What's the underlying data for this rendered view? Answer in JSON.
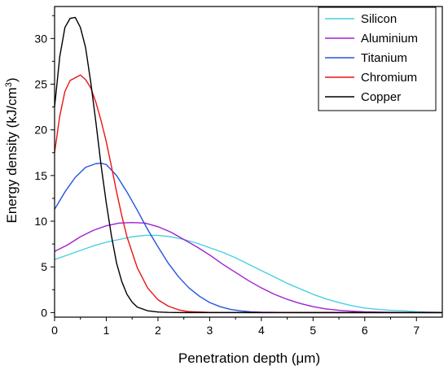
{
  "chart_data": {
    "type": "line",
    "title": "",
    "xlabel": "Penetration depth (μm)",
    "ylabel_main": "Energy density (kJ/cm",
    "ylabel_sup": "3",
    "ylabel_close": ")",
    "xlim": [
      0,
      7.5
    ],
    "ylim": [
      -0.5,
      33.5
    ],
    "xticks": [
      "0",
      "1",
      "2",
      "3",
      "4",
      "5",
      "6",
      "7"
    ],
    "yticks": [
      "0",
      "5",
      "10",
      "15",
      "20",
      "25",
      "30"
    ],
    "grid": false,
    "legend_position": "top-right",
    "series": [
      {
        "name": "Silicon",
        "color": "#48d1e0",
        "x": [
          0,
          0.25,
          0.5,
          0.75,
          1,
          1.25,
          1.5,
          1.75,
          2,
          2.25,
          2.5,
          2.75,
          3,
          3.25,
          3.5,
          3.75,
          4,
          4.25,
          4.5,
          4.75,
          5,
          5.25,
          5.5,
          5.75,
          6,
          6.25,
          6.5,
          6.75,
          7,
          7.25,
          7.5
        ],
        "y": [
          5.8,
          6.3,
          6.8,
          7.3,
          7.7,
          8.0,
          8.3,
          8.45,
          8.45,
          8.3,
          8.0,
          7.6,
          7.1,
          6.6,
          6.0,
          5.3,
          4.6,
          3.9,
          3.2,
          2.6,
          2.0,
          1.5,
          1.1,
          0.75,
          0.5,
          0.35,
          0.25,
          0.2,
          0.1,
          0.05,
          0.02
        ]
      },
      {
        "name": "Aluminium",
        "color": "#a020d0",
        "x": [
          0,
          0.25,
          0.5,
          0.75,
          1,
          1.25,
          1.5,
          1.75,
          2,
          2.25,
          2.5,
          2.75,
          3,
          3.25,
          3.5,
          3.75,
          4,
          4.25,
          4.5,
          4.75,
          5,
          5.25,
          5.5,
          5.75,
          6,
          6.5,
          7,
          7.5
        ],
        "y": [
          6.7,
          7.4,
          8.3,
          9.0,
          9.5,
          9.8,
          9.85,
          9.8,
          9.4,
          8.8,
          8.0,
          7.2,
          6.3,
          5.3,
          4.4,
          3.5,
          2.7,
          2.0,
          1.45,
          1.0,
          0.65,
          0.4,
          0.25,
          0.15,
          0.08,
          0.03,
          0.01,
          0
        ]
      },
      {
        "name": "Titanium",
        "color": "#2255dd",
        "x": [
          0,
          0.2,
          0.4,
          0.6,
          0.8,
          0.9,
          1,
          1.2,
          1.4,
          1.6,
          1.8,
          2,
          2.2,
          2.4,
          2.6,
          2.8,
          3,
          3.2,
          3.4,
          3.6,
          3.8,
          4,
          4.5,
          5,
          6,
          7,
          7.5
        ],
        "y": [
          11.3,
          13.2,
          14.8,
          15.9,
          16.3,
          16.35,
          16.2,
          15.0,
          13.2,
          11.2,
          9.1,
          7.2,
          5.4,
          3.9,
          2.7,
          1.8,
          1.1,
          0.65,
          0.35,
          0.18,
          0.08,
          0.04,
          0.01,
          0,
          0,
          0,
          0
        ]
      },
      {
        "name": "Chromium",
        "color": "#ee1111",
        "x": [
          0,
          0.1,
          0.2,
          0.3,
          0.4,
          0.5,
          0.6,
          0.7,
          0.8,
          0.9,
          1,
          1.1,
          1.2,
          1.3,
          1.4,
          1.6,
          1.8,
          2.0,
          2.2,
          2.4,
          2.6,
          3,
          4,
          5,
          6,
          7,
          7.5
        ],
        "y": [
          17.5,
          21.5,
          24.2,
          25.4,
          25.7,
          26.0,
          25.5,
          24.6,
          23.0,
          21.0,
          18.7,
          16.0,
          13.2,
          10.6,
          8.3,
          4.9,
          2.7,
          1.4,
          0.7,
          0.3,
          0.1,
          0.02,
          0,
          0,
          0,
          0,
          0
        ]
      },
      {
        "name": "Copper",
        "color": "#000000",
        "x": [
          0,
          0.1,
          0.2,
          0.3,
          0.4,
          0.5,
          0.6,
          0.7,
          0.8,
          0.9,
          1,
          1.1,
          1.2,
          1.3,
          1.4,
          1.5,
          1.6,
          1.8,
          2.0,
          2.2,
          2.5,
          3,
          4,
          5,
          6,
          7,
          7.5
        ],
        "y": [
          22.5,
          28.0,
          31.2,
          32.2,
          32.3,
          31.2,
          29.0,
          25.2,
          20.8,
          16.1,
          12.0,
          8.4,
          5.4,
          3.4,
          2.0,
          1.15,
          0.6,
          0.2,
          0.06,
          0.02,
          0,
          0,
          0,
          0,
          0,
          0,
          0
        ]
      }
    ]
  }
}
